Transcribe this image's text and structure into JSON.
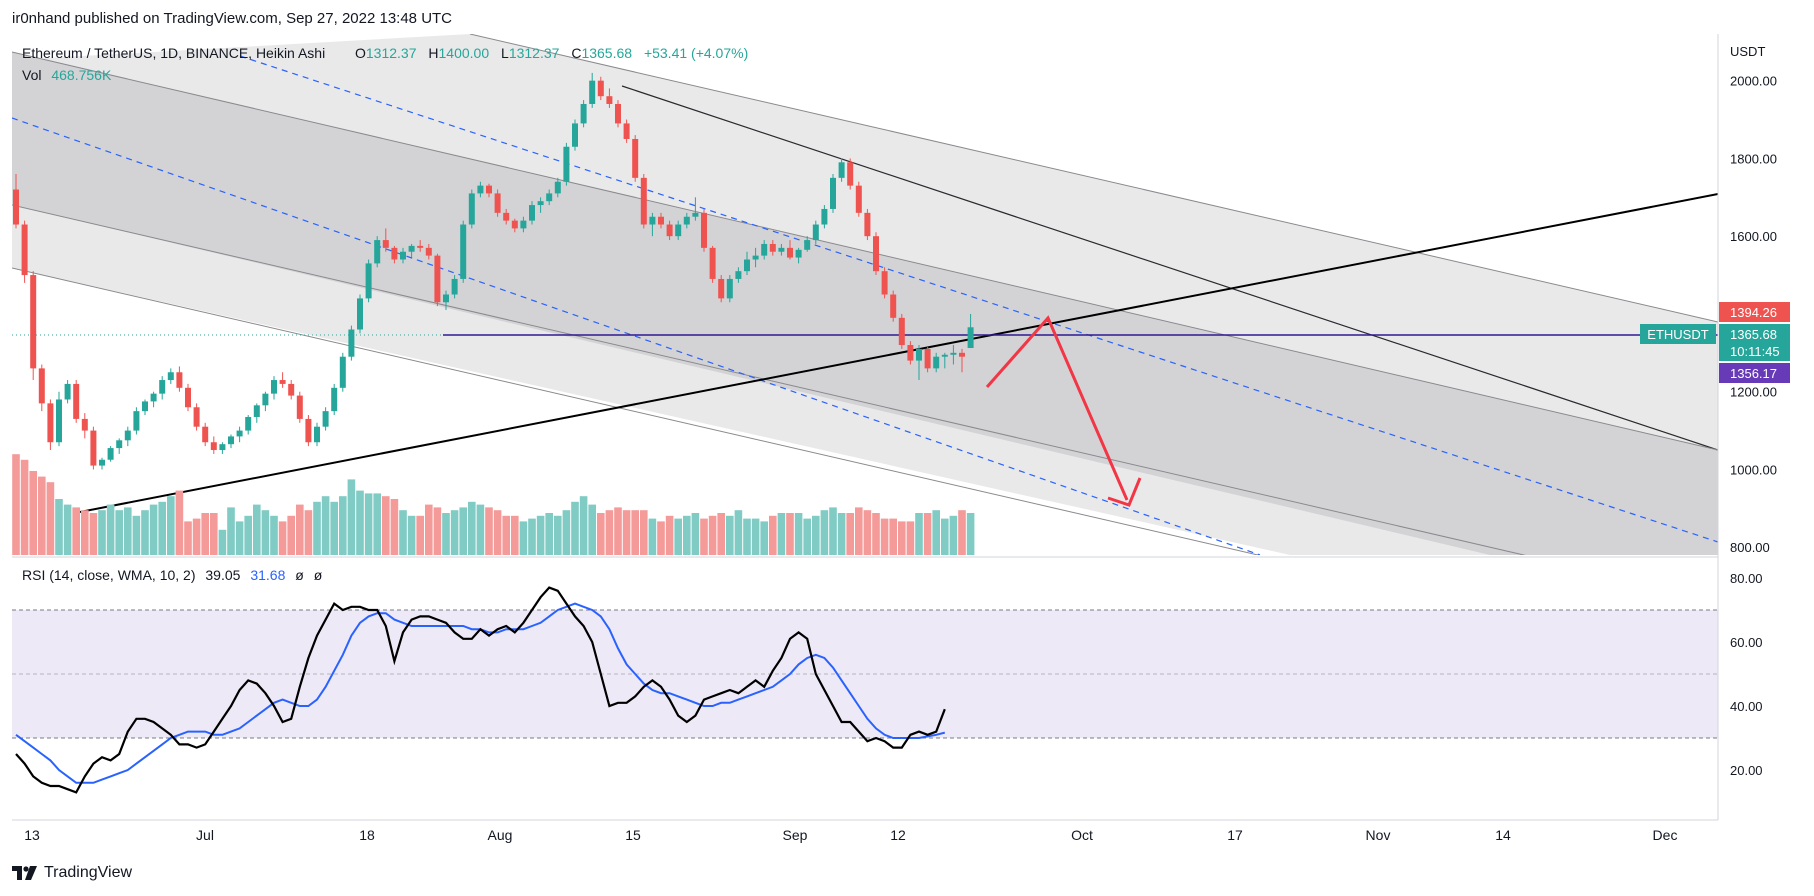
{
  "header": {
    "published": "ir0nhand published on TradingView.com, Sep 27, 2022 13:48 UTC"
  },
  "legend": {
    "symbol": "Ethereum / TetherUS, 1D, BINANCE, Heikin Ashi",
    "o_label": "O",
    "o_value": "1312.37",
    "h_label": "H",
    "h_value": "1400.00",
    "l_label": "L",
    "l_value": "1312.37",
    "c_label": "C",
    "c_value": "1365.68",
    "change": "+53.41 (+4.07%)",
    "vol_label": "Vol",
    "vol_value": "468.756K"
  },
  "rsi_legend": {
    "label": "RSI (14, close, WMA, 10, 2)",
    "rsi_value": "39.05",
    "ma_value": "31.68",
    "extra1": "ø",
    "extra2": "ø"
  },
  "price_axis": {
    "unit": "USDT",
    "ticks": [
      "2000.00",
      "1800.00",
      "1600.00",
      "1200.00",
      "1000.00",
      "800.00"
    ],
    "tick_values": [
      2000,
      1800,
      1600,
      1200,
      1000,
      800
    ]
  },
  "rsi_axis": {
    "ticks": [
      "80.00",
      "60.00",
      "40.00",
      "20.00"
    ],
    "tick_values": [
      80,
      60,
      40,
      20
    ]
  },
  "price_labels": {
    "ticker": "ETHUSDT",
    "high_tag": "1394.26",
    "last_price": "1365.68",
    "countdown": "10:11:45",
    "low_tag": "1356.17"
  },
  "time_axis": {
    "labels": [
      "13",
      "Jul",
      "18",
      "Aug",
      "15",
      "Sep",
      "12",
      "Oct",
      "17",
      "Nov",
      "14",
      "Dec"
    ]
  },
  "colors": {
    "up": "#26a69a",
    "down": "#ef5350",
    "vol_up": "#80cbc4",
    "vol_down": "#f49a98",
    "rsi_line": "#000000",
    "rsi_ma": "#2962ff",
    "rsi_band": "#ede9f7",
    "arrow": "#f23645",
    "hline": "#311b92",
    "low_tag": "#673ab7"
  },
  "footer": {
    "brand": "TradingView"
  },
  "chart_data": {
    "type": "candlestick",
    "price_ylim": [
      780,
      2120
    ],
    "rsi_ylim": [
      5,
      85
    ],
    "rsi_levels": [
      70,
      50,
      30
    ],
    "series": [
      {
        "name": "Ethereum / TetherUS, 1D, BINANCE, Heikin Ashi",
        "ohlc": [
          [
            1720,
            1760,
            1620,
            1630
          ],
          [
            1630,
            1640,
            1480,
            1500
          ],
          [
            1500,
            1510,
            1230,
            1260
          ],
          [
            1260,
            1270,
            1150,
            1170
          ],
          [
            1170,
            1180,
            1050,
            1070
          ],
          [
            1070,
            1200,
            1060,
            1180
          ],
          [
            1180,
            1230,
            1170,
            1220
          ],
          [
            1220,
            1230,
            1120,
            1130
          ],
          [
            1130,
            1145,
            1080,
            1100
          ],
          [
            1100,
            1110,
            1000,
            1010
          ],
          [
            1010,
            1030,
            1000,
            1025
          ],
          [
            1025,
            1060,
            1020,
            1055
          ],
          [
            1055,
            1080,
            1040,
            1075
          ],
          [
            1075,
            1110,
            1060,
            1100
          ],
          [
            1100,
            1160,
            1090,
            1150
          ],
          [
            1150,
            1180,
            1140,
            1175
          ],
          [
            1175,
            1200,
            1160,
            1195
          ],
          [
            1195,
            1240,
            1180,
            1230
          ],
          [
            1230,
            1260,
            1220,
            1250
          ],
          [
            1250,
            1265,
            1200,
            1210
          ],
          [
            1210,
            1220,
            1150,
            1160
          ],
          [
            1160,
            1170,
            1100,
            1110
          ],
          [
            1110,
            1120,
            1060,
            1070
          ],
          [
            1070,
            1085,
            1040,
            1050
          ],
          [
            1050,
            1070,
            1040,
            1065
          ],
          [
            1065,
            1090,
            1055,
            1085
          ],
          [
            1085,
            1110,
            1070,
            1100
          ],
          [
            1100,
            1140,
            1090,
            1135
          ],
          [
            1135,
            1170,
            1120,
            1165
          ],
          [
            1165,
            1200,
            1150,
            1195
          ],
          [
            1195,
            1240,
            1180,
            1230
          ],
          [
            1230,
            1250,
            1210,
            1220
          ],
          [
            1220,
            1230,
            1180,
            1190
          ],
          [
            1190,
            1200,
            1120,
            1130
          ],
          [
            1130,
            1140,
            1060,
            1070
          ],
          [
            1070,
            1120,
            1060,
            1110
          ],
          [
            1110,
            1160,
            1100,
            1150
          ],
          [
            1150,
            1220,
            1140,
            1210
          ],
          [
            1210,
            1300,
            1200,
            1290
          ],
          [
            1290,
            1370,
            1280,
            1360
          ],
          [
            1360,
            1450,
            1350,
            1440
          ],
          [
            1440,
            1540,
            1430,
            1530
          ],
          [
            1530,
            1600,
            1520,
            1590
          ],
          [
            1590,
            1620,
            1560,
            1570
          ],
          [
            1570,
            1575,
            1530,
            1540
          ],
          [
            1540,
            1570,
            1530,
            1560
          ],
          [
            1560,
            1580,
            1545,
            1575
          ],
          [
            1575,
            1590,
            1560,
            1570
          ],
          [
            1570,
            1580,
            1540,
            1550
          ],
          [
            1550,
            1555,
            1420,
            1430
          ],
          [
            1430,
            1460,
            1410,
            1450
          ],
          [
            1450,
            1500,
            1440,
            1490
          ],
          [
            1490,
            1640,
            1480,
            1630
          ],
          [
            1630,
            1720,
            1620,
            1710
          ],
          [
            1710,
            1740,
            1700,
            1730
          ],
          [
            1730,
            1735,
            1700,
            1710
          ],
          [
            1710,
            1720,
            1650,
            1660
          ],
          [
            1660,
            1670,
            1630,
            1640
          ],
          [
            1640,
            1645,
            1610,
            1620
          ],
          [
            1620,
            1650,
            1610,
            1640
          ],
          [
            1640,
            1690,
            1630,
            1680
          ],
          [
            1680,
            1700,
            1660,
            1690
          ],
          [
            1690,
            1720,
            1680,
            1710
          ],
          [
            1710,
            1750,
            1700,
            1740
          ],
          [
            1740,
            1840,
            1730,
            1830
          ],
          [
            1830,
            1900,
            1820,
            1890
          ],
          [
            1890,
            1950,
            1880,
            1940
          ],
          [
            1940,
            2020,
            1930,
            2000
          ],
          [
            2000,
            2010,
            1950,
            1960
          ],
          [
            1960,
            1980,
            1930,
            1940
          ],
          [
            1940,
            1950,
            1880,
            1890
          ],
          [
            1890,
            1900,
            1840,
            1850
          ],
          [
            1850,
            1860,
            1740,
            1750
          ],
          [
            1750,
            1760,
            1620,
            1630
          ],
          [
            1630,
            1660,
            1600,
            1650
          ],
          [
            1650,
            1660,
            1620,
            1630
          ],
          [
            1630,
            1640,
            1590,
            1600
          ],
          [
            1600,
            1640,
            1590,
            1630
          ],
          [
            1630,
            1660,
            1620,
            1650
          ],
          [
            1650,
            1700,
            1640,
            1660
          ],
          [
            1660,
            1670,
            1560,
            1570
          ],
          [
            1570,
            1575,
            1480,
            1490
          ],
          [
            1490,
            1500,
            1430,
            1440
          ],
          [
            1440,
            1500,
            1430,
            1490
          ],
          [
            1490,
            1520,
            1480,
            1510
          ],
          [
            1510,
            1560,
            1500,
            1540
          ],
          [
            1540,
            1570,
            1520,
            1550
          ],
          [
            1550,
            1590,
            1540,
            1580
          ],
          [
            1580,
            1590,
            1550,
            1560
          ],
          [
            1560,
            1580,
            1550,
            1570
          ],
          [
            1570,
            1590,
            1540,
            1545
          ],
          [
            1545,
            1570,
            1530,
            1565
          ],
          [
            1565,
            1600,
            1560,
            1590
          ],
          [
            1590,
            1640,
            1580,
            1630
          ],
          [
            1630,
            1680,
            1620,
            1670
          ],
          [
            1670,
            1760,
            1660,
            1750
          ],
          [
            1750,
            1800,
            1740,
            1790
          ],
          [
            1790,
            1800,
            1720,
            1730
          ],
          [
            1730,
            1740,
            1650,
            1660
          ],
          [
            1660,
            1670,
            1590,
            1600
          ],
          [
            1600,
            1610,
            1500,
            1510
          ],
          [
            1510,
            1520,
            1440,
            1450
          ],
          [
            1450,
            1460,
            1380,
            1390
          ],
          [
            1390,
            1400,
            1310,
            1320
          ],
          [
            1320,
            1330,
            1270,
            1280
          ],
          [
            1280,
            1320,
            1230,
            1310
          ],
          [
            1310,
            1315,
            1250,
            1260
          ],
          [
            1260,
            1300,
            1250,
            1290
          ],
          [
            1290,
            1300,
            1260,
            1295
          ],
          [
            1295,
            1320,
            1270,
            1300
          ],
          [
            1300,
            1310,
            1250,
            1290
          ],
          [
            1312.37,
            1400,
            1312.37,
            1365.68
          ]
        ]
      },
      {
        "name": "Vol",
        "values": [
          36,
          34,
          30,
          28,
          26,
          20,
          18,
          17,
          16,
          15,
          16,
          18,
          16,
          17,
          14,
          16,
          18,
          19,
          21,
          23,
          12,
          13,
          15,
          15,
          9,
          17,
          12,
          14,
          18,
          16,
          14,
          12,
          14,
          18,
          16,
          19,
          21,
          19,
          21,
          27,
          23,
          22,
          22,
          21,
          20,
          16,
          14,
          14,
          18,
          17,
          15,
          16,
          17,
          19,
          18,
          17,
          16,
          14,
          14,
          12,
          13,
          14,
          15,
          14,
          16,
          19,
          21,
          18,
          15,
          16,
          17,
          16,
          16,
          16,
          13,
          12,
          14,
          13,
          14,
          15,
          13,
          14,
          15,
          14,
          16,
          13,
          13,
          12,
          14,
          15,
          15,
          15,
          13,
          14,
          16,
          17,
          15,
          15,
          17,
          16,
          15,
          13,
          13,
          12,
          12,
          15,
          15,
          16,
          13,
          14,
          16,
          15
        ]
      },
      {
        "name": "RSI",
        "values": [
          25,
          22,
          18,
          16,
          15,
          15,
          14,
          13,
          18,
          22,
          24,
          23,
          25,
          32,
          36,
          36,
          35,
          33,
          31,
          28,
          28,
          27,
          28,
          32,
          36,
          40,
          45,
          48,
          47,
          44,
          40,
          35,
          36,
          46,
          55,
          62,
          67,
          72,
          70,
          71,
          71,
          70,
          70,
          65,
          54,
          63,
          67,
          68,
          68,
          67,
          66,
          63,
          61,
          61,
          64,
          62,
          64,
          65,
          63,
          66,
          70,
          74,
          77,
          76,
          72,
          68,
          65,
          60,
          50,
          40,
          41,
          41,
          43,
          46,
          48,
          46,
          42,
          37,
          35,
          37,
          42,
          43,
          44,
          45,
          44,
          46,
          48,
          46,
          51,
          55,
          61,
          63,
          61,
          50,
          45,
          40,
          35,
          35,
          32,
          29,
          30,
          29,
          27,
          27,
          31,
          32,
          31,
          32,
          39
        ]
      },
      {
        "name": "RSI-based MA",
        "values": [
          31,
          29,
          27,
          25,
          23,
          20,
          18,
          16,
          16,
          16,
          17,
          18,
          19,
          20,
          22,
          24,
          26,
          28,
          30,
          31,
          32,
          32,
          32,
          31,
          31,
          32,
          33,
          35,
          37,
          39,
          41,
          42,
          41,
          40,
          40,
          42,
          46,
          51,
          56,
          62,
          66,
          68,
          69,
          69,
          67,
          66,
          65,
          65,
          65,
          65,
          65,
          65,
          65,
          64,
          64,
          63,
          63,
          64,
          64,
          64,
          65,
          66,
          68,
          70,
          71,
          72,
          71,
          70,
          68,
          64,
          58,
          53,
          50,
          47,
          45,
          44,
          44,
          43,
          42,
          41,
          40,
          40,
          41,
          41,
          42,
          43,
          44,
          45,
          46,
          48,
          50,
          53,
          55,
          56,
          55,
          52,
          48,
          44,
          40,
          36,
          33,
          31,
          30,
          30,
          30,
          30,
          30.5,
          31,
          31.68
        ]
      }
    ]
  }
}
